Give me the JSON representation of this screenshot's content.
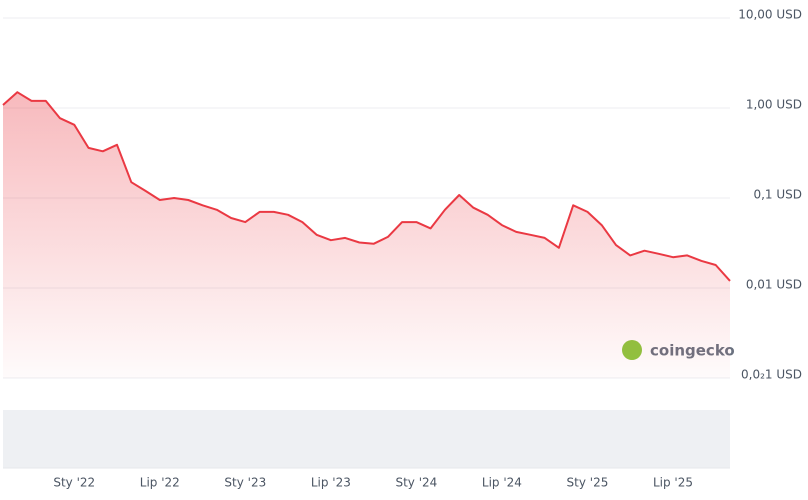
{
  "chart_data": {
    "type": "line",
    "log_scale": true,
    "grid": true,
    "color": "#ea3943",
    "watermark": "coingecko",
    "x": [
      "2021-08",
      "2021-09",
      "2021-10",
      "2021-11",
      "2021-12",
      "2022-01",
      "2022-02",
      "2022-03",
      "2022-04",
      "2022-05",
      "2022-06",
      "2022-07",
      "2022-08",
      "2022-09",
      "2022-10",
      "2022-11",
      "2022-12",
      "2023-01",
      "2023-02",
      "2023-03",
      "2023-04",
      "2023-05",
      "2023-06",
      "2023-07",
      "2023-08",
      "2023-09",
      "2023-10",
      "2023-11",
      "2023-12",
      "2024-01",
      "2024-02",
      "2024-03",
      "2024-04",
      "2024-05",
      "2024-06",
      "2024-07",
      "2024-08",
      "2024-09",
      "2024-10",
      "2024-11",
      "2024-12",
      "2025-01",
      "2025-02",
      "2025-03",
      "2025-04",
      "2025-05",
      "2025-06",
      "2025-07",
      "2025-08",
      "2025-09",
      "2025-10",
      "2025-11"
    ],
    "values": [
      1.08,
      1.5,
      1.2,
      1.2,
      0.77,
      0.65,
      0.36,
      0.33,
      0.39,
      0.15,
      0.12,
      0.095,
      0.1,
      0.095,
      0.083,
      0.074,
      0.06,
      0.054,
      0.07,
      0.07,
      0.065,
      0.054,
      0.039,
      0.034,
      0.036,
      0.032,
      0.031,
      0.037,
      0.054,
      0.054,
      0.046,
      0.074,
      0.108,
      0.078,
      0.065,
      0.05,
      0.042,
      0.039,
      0.036,
      0.028,
      0.083,
      0.07,
      0.05,
      0.03,
      0.023,
      0.026,
      0.024,
      0.022,
      0.023,
      0.02,
      0.018,
      0.012
    ],
    "ylim": [
      0.001,
      10
    ],
    "yticks": [
      {
        "value": 10,
        "label": "10,00 USD"
      },
      {
        "value": 1,
        "label": "1,00 USD"
      },
      {
        "value": 0.1,
        "label": "0,1 USD"
      },
      {
        "value": 0.01,
        "label": "0,01 USD"
      },
      {
        "value": 0.001,
        "label": "0,0₂1 USD"
      }
    ],
    "xticks": [
      {
        "value": "2022-01",
        "label": "Sty '22"
      },
      {
        "value": "2022-07",
        "label": "Lip '22"
      },
      {
        "value": "2023-01",
        "label": "Sty '23"
      },
      {
        "value": "2023-07",
        "label": "Lip '23"
      },
      {
        "value": "2024-01",
        "label": "Sty '24"
      },
      {
        "value": "2024-07",
        "label": "Lip '24"
      },
      {
        "value": "2025-01",
        "label": "Sty '25"
      },
      {
        "value": "2025-07",
        "label": "Lip '25"
      }
    ]
  }
}
